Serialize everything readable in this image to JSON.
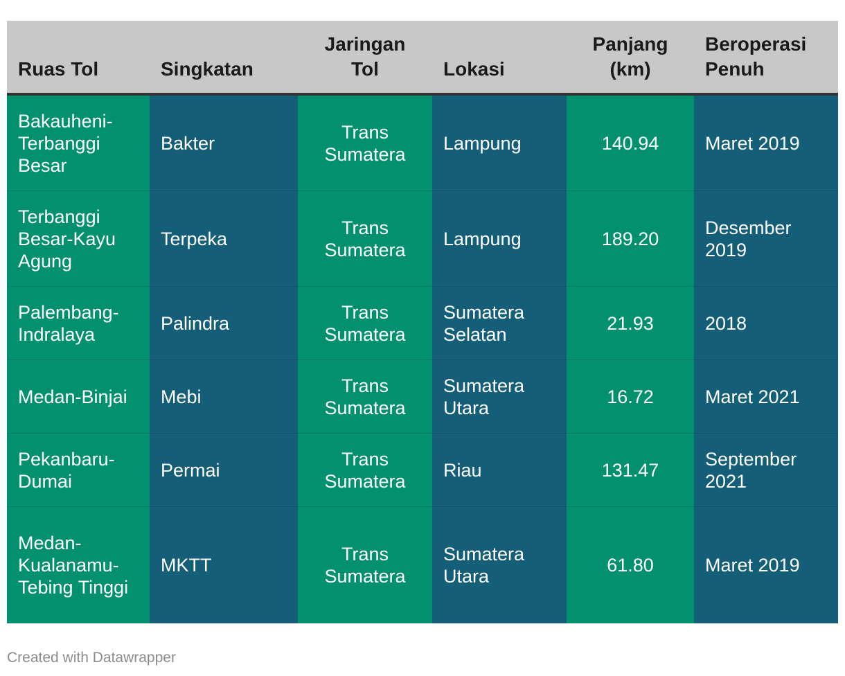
{
  "table": {
    "headers": [
      "Ruas Tol",
      "Singkatan",
      "Jaringan Tol",
      "Lokasi",
      "Panjang (km)",
      "Beroperasi Penuh"
    ],
    "rows": [
      [
        "Bakauheni-Terbanggi Besar",
        "Bakter",
        "Trans Sumatera",
        "Lampung",
        "140.94",
        "Maret 2019"
      ],
      [
        "Terbanggi Besar-Kayu Agung",
        "Terpeka",
        "Trans Sumatera",
        "Lampung",
        "189.20",
        "Desember 2019"
      ],
      [
        "Palembang-Indralaya",
        "Palindra",
        "Trans Sumatera",
        "Sumatera Selatan",
        "21.93",
        "2018"
      ],
      [
        "Medan-Binjai",
        "Mebi",
        "Trans Sumatera",
        "Sumatera Utara",
        "16.72",
        "Maret 2021"
      ],
      [
        "Pekanbaru-Dumai",
        "Permai",
        "Trans Sumatera",
        "Riau",
        "131.47",
        "September 2021"
      ],
      [
        "Medan-Kualanamu-Tebing Tinggi",
        "MKTT",
        "Trans Sumatera",
        "Sumatera Utara",
        "61.80",
        "Maret 2019"
      ]
    ]
  },
  "footer": {
    "credit": "Created with Datawrapper"
  },
  "colors": {
    "green": "#02906f",
    "blue": "#155e77",
    "header_bg": "#c8c8c8"
  }
}
